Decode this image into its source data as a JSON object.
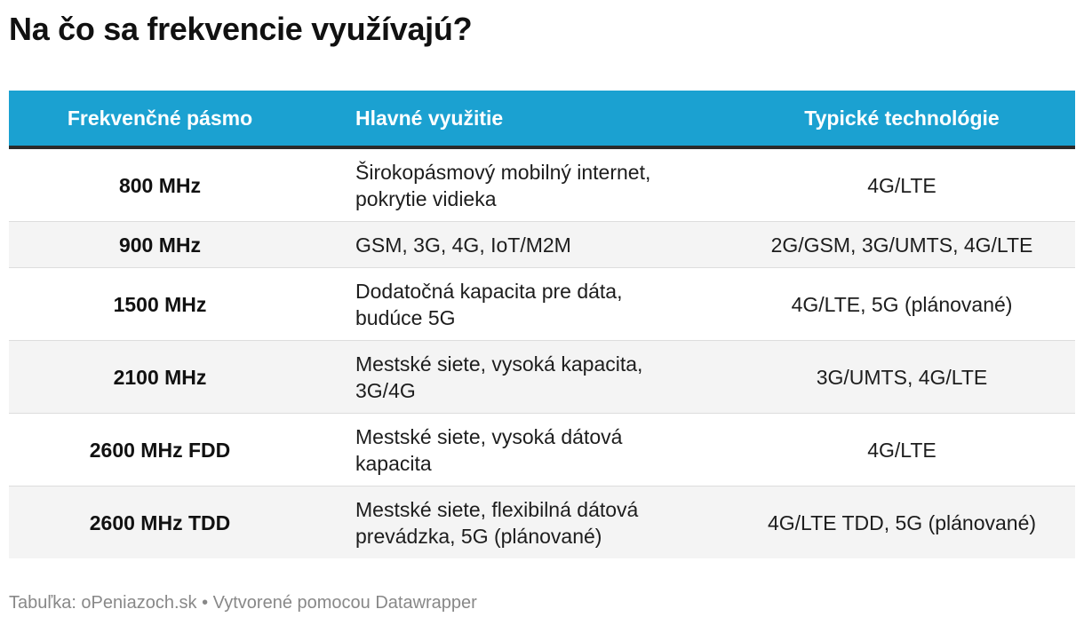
{
  "title": "Na čo sa frekvencie využívajú?",
  "table": {
    "headers": [
      "Frekvenčné pásmo",
      "Hlavné využitie",
      "Typické technológie"
    ],
    "rows": [
      {
        "band": "800 MHz",
        "use_1": "Širokopásmový mobilný internet,",
        "use_2": "pokrytie vidieka",
        "tech": "4G/LTE"
      },
      {
        "band": "900 MHz",
        "use_1": "GSM, 3G, 4G, IoT/M2M",
        "use_2": "",
        "tech": "2G/GSM, 3G/UMTS, 4G/LTE"
      },
      {
        "band": "1500 MHz",
        "use_1": "Dodatočná kapacita pre dáta,",
        "use_2": "budúce 5G",
        "tech": "4G/LTE, 5G (plánované)"
      },
      {
        "band": "2100 MHz",
        "use_1": "Mestské siete, vysoká kapacita,",
        "use_2": "3G/4G",
        "tech": "3G/UMTS, 4G/LTE"
      },
      {
        "band": "2600 MHz FDD",
        "use_1": "Mestské siete, vysoká dátová",
        "use_2": "kapacita",
        "tech": "4G/LTE"
      },
      {
        "band": "2600 MHz TDD",
        "use_1": "Mestské siete, flexibilná dátová",
        "use_2": "prevádzka, 5G (plánované)",
        "tech": "4G/LTE TDD, 5G (plánované)"
      }
    ]
  },
  "footer": "Tabuľka: oPeniazoch.sk • Vytvorené pomocou Datawrapper",
  "colors": {
    "header_bg": "#1ba1d1",
    "header_text": "#ffffff",
    "stripe": "#f4f4f4",
    "footer_text": "#888888"
  }
}
